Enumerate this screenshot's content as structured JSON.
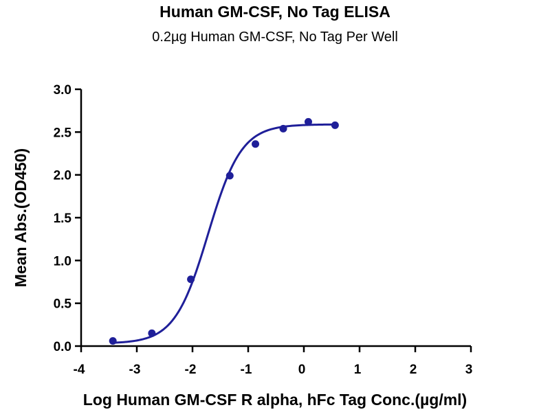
{
  "chart_data": {
    "type": "line",
    "title": "Human GM-CSF, No Tag ELISA",
    "subtitle": "0.2µg Human GM-CSF, No Tag Per Well",
    "xlabel": "Log Human GM-CSF R alpha, hFc Tag Conc.(µg/ml)",
    "ylabel": "Mean Abs.(OD450)",
    "xlim": [
      -4,
      3
    ],
    "ylim": [
      0,
      3.0
    ],
    "xticks": [
      "-4",
      "-3",
      "-2",
      "-1",
      "0",
      "1",
      "2",
      "3"
    ],
    "yticks": [
      "0.0",
      "0.5",
      "1.0",
      "1.5",
      "2.0",
      "2.5",
      "3.0"
    ],
    "grid": false,
    "series": [
      {
        "marker": "circle",
        "color": "#1f1f99",
        "x": [
          -3.43,
          -2.73,
          -2.03,
          -1.33,
          -0.87,
          -0.37,
          0.08,
          0.56
        ],
        "y": [
          0.06,
          0.15,
          0.78,
          1.99,
          2.36,
          2.54,
          2.62,
          2.58
        ]
      }
    ],
    "fit_curve": {
      "type": "sigmoidal",
      "color": "#1f1f99",
      "x_range": [
        -3.43,
        0.56
      ],
      "bottom": 0.03,
      "top": 2.59,
      "log_ec50": -1.72,
      "hill_slope": 1.45
    }
  }
}
